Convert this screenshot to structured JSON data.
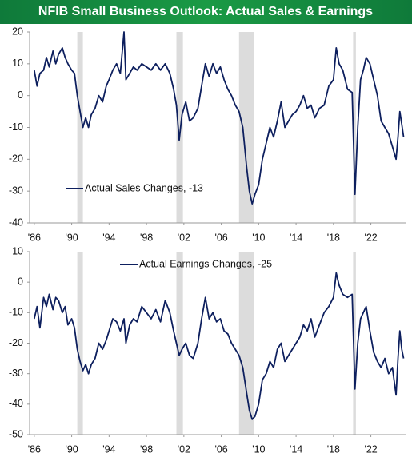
{
  "title": "NFIB Small Business Outlook: Actual Sales & Earnings",
  "chart_data": [
    {
      "type": "line",
      "series": [
        {
          "name": "Actual Sales Changes, -13",
          "color": "#0d1f5e",
          "values": [
            8,
            3,
            7,
            8,
            12,
            9,
            14,
            10,
            13,
            15,
            12,
            10,
            8,
            7,
            0,
            -5,
            -10,
            -7,
            -10,
            -6,
            -4,
            0,
            -2,
            3,
            5,
            8,
            10,
            7,
            20,
            5,
            7,
            9,
            8,
            10,
            9,
            8,
            10,
            8,
            10,
            7,
            2,
            -3,
            -14,
            -6,
            -2,
            -8,
            -7,
            -4,
            3,
            10,
            6,
            10,
            7,
            9,
            5,
            2,
            0,
            -3,
            -5,
            -10,
            -22,
            -30,
            -34,
            -31,
            -28,
            -20,
            -15,
            -10,
            -13,
            -8,
            -2,
            -10,
            -8,
            -6,
            -5,
            -3,
            0,
            -4,
            -3,
            -7,
            -4,
            -3,
            3,
            5,
            15,
            10,
            8,
            2,
            1,
            -31,
            -10,
            5,
            8,
            12,
            10,
            5,
            0,
            -8,
            -10,
            -12,
            -16,
            -20,
            -13,
            -5,
            -9,
            -13
          ]
        }
      ],
      "x": [
        1986.0,
        1986.3,
        1986.6,
        1987.0,
        1987.3,
        1987.6,
        1988.0,
        1988.3,
        1988.6,
        1989.0,
        1989.3,
        1989.6,
        1990.0,
        1990.3,
        1990.6,
        1990.9,
        1991.2,
        1991.5,
        1991.8,
        1992.1,
        1992.5,
        1992.9,
        1993.3,
        1993.7,
        1994.0,
        1994.4,
        1994.8,
        1995.2,
        1995.6,
        1995.8,
        1996.2,
        1996.6,
        1997.0,
        1997.5,
        1998.0,
        1998.5,
        1999.0,
        1999.5,
        2000.0,
        2000.5,
        2000.9,
        2001.2,
        2001.5,
        2001.8,
        2002.2,
        2002.6,
        2003.0,
        2003.5,
        2003.9,
        2004.3,
        2004.7,
        2005.1,
        2005.5,
        2005.9,
        2006.3,
        2006.7,
        2007.1,
        2007.5,
        2007.9,
        2008.3,
        2008.7,
        2009.0,
        2009.3,
        2009.6,
        2010.0,
        2010.4,
        2010.8,
        2011.2,
        2011.6,
        2012.0,
        2012.4,
        2012.8,
        2013.2,
        2013.6,
        2014.0,
        2014.4,
        2014.8,
        2015.2,
        2015.6,
        2016.0,
        2016.5,
        2017.0,
        2017.5,
        2018.0,
        2018.3,
        2018.6,
        2019.0,
        2019.5,
        2020.0,
        2020.3,
        2020.6,
        2020.9,
        2021.2,
        2021.5,
        2021.9,
        2022.3,
        2022.7,
        2023.1,
        2023.5,
        2023.9,
        2024.3,
        2024.7,
        2024.9,
        2025.1,
        2025.3,
        2025.5
      ],
      "xlim": [
        1985.5,
        2025.8
      ],
      "xticks": [
        {
          "value": 1986,
          "label": "'86"
        },
        {
          "value": 1990,
          "label": "'90"
        },
        {
          "value": 1994,
          "label": "'94"
        },
        {
          "value": 1998,
          "label": "'98"
        },
        {
          "value": 2002,
          "label": "'02"
        },
        {
          "value": 2006,
          "label": "'06"
        },
        {
          "value": 2010,
          "label": "'10"
        },
        {
          "value": 2014,
          "label": "'14"
        },
        {
          "value": 2018,
          "label": "'18"
        },
        {
          "value": 2022,
          "label": "'22"
        }
      ],
      "ylim": [
        -40,
        20
      ],
      "yticks": [
        20,
        10,
        0,
        -10,
        -20,
        -30,
        -40
      ],
      "shaded_periods": [
        [
          1990.6,
          1991.2
        ],
        [
          2001.2,
          2001.9
        ],
        [
          2007.9,
          2009.5
        ],
        [
          2020.1,
          2020.4
        ]
      ],
      "shade_color": "#dcdcdc",
      "legend": "lower-left"
    },
    {
      "type": "line",
      "series": [
        {
          "name": "Actual Earnings Changes, -25",
          "color": "#0d1f5e",
          "values": [
            -12,
            -8,
            -15,
            -5,
            -8,
            -4,
            -9,
            -5,
            -6,
            -10,
            -8,
            -14,
            -12,
            -15,
            -22,
            -26,
            -29,
            -27,
            -30,
            -27,
            -25,
            -20,
            -22,
            -19,
            -16,
            -12,
            -13,
            -16,
            -12,
            -20,
            -14,
            -12,
            -13,
            -8,
            -10,
            -12,
            -9,
            -13,
            -6,
            -10,
            -16,
            -20,
            -24,
            -22,
            -20,
            -24,
            -25,
            -20,
            -12,
            -5,
            -12,
            -10,
            -13,
            -12,
            -16,
            -17,
            -20,
            -22,
            -24,
            -28,
            -36,
            -42,
            -45,
            -44,
            -40,
            -32,
            -30,
            -26,
            -28,
            -22,
            -20,
            -26,
            -24,
            -22,
            -20,
            -18,
            -14,
            -16,
            -12,
            -18,
            -14,
            -10,
            -8,
            -5,
            3,
            -1,
            -4,
            -5,
            -4,
            -35,
            -20,
            -12,
            -10,
            -8,
            -16,
            -23,
            -26,
            -28,
            -25,
            -30,
            -28,
            -37,
            -25,
            -16,
            -22,
            -25
          ]
        }
      ],
      "x": [
        1986.0,
        1986.3,
        1986.6,
        1987.0,
        1987.3,
        1987.6,
        1988.0,
        1988.3,
        1988.6,
        1989.0,
        1989.3,
        1989.6,
        1990.0,
        1990.3,
        1990.6,
        1990.9,
        1991.2,
        1991.5,
        1991.8,
        1992.1,
        1992.5,
        1992.9,
        1993.3,
        1993.7,
        1994.0,
        1994.4,
        1994.8,
        1995.2,
        1995.6,
        1995.8,
        1996.2,
        1996.6,
        1997.0,
        1997.5,
        1998.0,
        1998.5,
        1999.0,
        1999.5,
        2000.0,
        2000.5,
        2000.9,
        2001.2,
        2001.5,
        2001.8,
        2002.2,
        2002.6,
        2003.0,
        2003.5,
        2003.9,
        2004.3,
        2004.7,
        2005.1,
        2005.5,
        2005.9,
        2006.3,
        2006.7,
        2007.1,
        2007.5,
        2007.9,
        2008.3,
        2008.7,
        2009.0,
        2009.3,
        2009.6,
        2010.0,
        2010.4,
        2010.8,
        2011.2,
        2011.6,
        2012.0,
        2012.4,
        2012.8,
        2013.2,
        2013.6,
        2014.0,
        2014.4,
        2014.8,
        2015.2,
        2015.6,
        2016.0,
        2016.5,
        2017.0,
        2017.5,
        2018.0,
        2018.3,
        2018.6,
        2019.0,
        2019.5,
        2020.0,
        2020.3,
        2020.6,
        2020.9,
        2021.2,
        2021.5,
        2021.9,
        2022.3,
        2022.7,
        2023.1,
        2023.5,
        2023.9,
        2024.3,
        2024.7,
        2024.9,
        2025.1,
        2025.3,
        2025.5
      ],
      "xlim": [
        1985.5,
        2025.8
      ],
      "xticks": [
        {
          "value": 1986,
          "label": "'86"
        },
        {
          "value": 1990,
          "label": "'90"
        },
        {
          "value": 1994,
          "label": "'94"
        },
        {
          "value": 1998,
          "label": "'98"
        },
        {
          "value": 2002,
          "label": "'02"
        },
        {
          "value": 2006,
          "label": "'06"
        },
        {
          "value": 2010,
          "label": "'10"
        },
        {
          "value": 2014,
          "label": "'14"
        },
        {
          "value": 2018,
          "label": "'18"
        },
        {
          "value": 2022,
          "label": "'22"
        }
      ],
      "ylim": [
        -50,
        10
      ],
      "yticks": [
        10,
        0,
        -10,
        -20,
        -30,
        -40,
        -50
      ],
      "shaded_periods": [
        [
          1990.6,
          1991.2
        ],
        [
          2001.2,
          2001.9
        ],
        [
          2007.9,
          2009.5
        ],
        [
          2020.1,
          2020.4
        ]
      ],
      "shade_color": "#dcdcdc",
      "legend": "upper-left"
    }
  ]
}
